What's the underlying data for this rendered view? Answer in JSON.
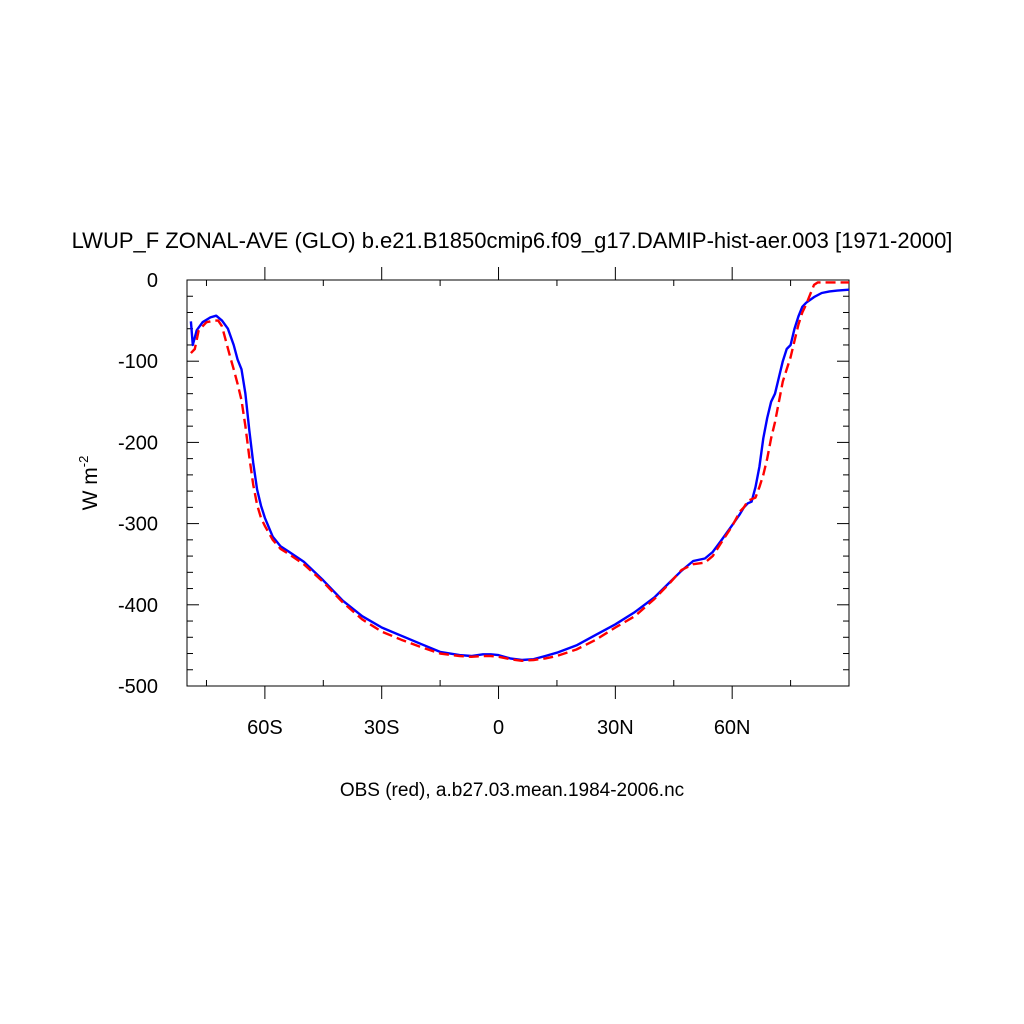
{
  "chart_data": {
    "type": "line",
    "title": "LWUP_F ZONAL-AVE (GLO) b.e21.B1850cmip6.f09_g17.DAMIP-hist-aer.003 [1971-2000]",
    "xlabel": "OBS (red), a.b27.03.mean.1984-2006.nc",
    "ylabel_base": "W m",
    "ylabel_exp": "-2",
    "xlim": [
      -80,
      90
    ],
    "ylim": [
      -500,
      0
    ],
    "x_ticks": [
      {
        "value": -60,
        "label": "60S"
      },
      {
        "value": -30,
        "label": "30S"
      },
      {
        "value": 0,
        "label": "0"
      },
      {
        "value": 30,
        "label": "30N"
      },
      {
        "value": 60,
        "label": "60N"
      }
    ],
    "y_ticks": [
      {
        "value": 0,
        "label": "0"
      },
      {
        "value": -100,
        "label": "-100"
      },
      {
        "value": -200,
        "label": "-200"
      },
      {
        "value": -300,
        "label": "-300"
      },
      {
        "value": -400,
        "label": "-400"
      },
      {
        "value": -500,
        "label": "-500"
      }
    ],
    "series": [
      {
        "color": "#0000ff",
        "dash": "solid",
        "points": [
          [
            -79,
            -51
          ],
          [
            -78.5,
            -80
          ],
          [
            -77.5,
            -62
          ],
          [
            -76,
            -52
          ],
          [
            -74,
            -46
          ],
          [
            -72.5,
            -44
          ],
          [
            -71,
            -50
          ],
          [
            -69.5,
            -60
          ],
          [
            -68,
            -80
          ],
          [
            -67,
            -98
          ],
          [
            -66,
            -110
          ],
          [
            -65,
            -140
          ],
          [
            -64,
            -185
          ],
          [
            -63,
            -225
          ],
          [
            -62,
            -258
          ],
          [
            -61,
            -278
          ],
          [
            -60,
            -293
          ],
          [
            -58,
            -316
          ],
          [
            -56,
            -328
          ],
          [
            -54,
            -334
          ],
          [
            -50,
            -347
          ],
          [
            -45,
            -370
          ],
          [
            -40,
            -395
          ],
          [
            -35,
            -414
          ],
          [
            -30,
            -428
          ],
          [
            -25,
            -438
          ],
          [
            -20,
            -448
          ],
          [
            -15,
            -458
          ],
          [
            -10,
            -462
          ],
          [
            -7,
            -463
          ],
          [
            -4,
            -461
          ],
          [
            -2,
            -461
          ],
          [
            0,
            -462
          ],
          [
            3,
            -466
          ],
          [
            6,
            -468
          ],
          [
            9,
            -467
          ],
          [
            12,
            -463
          ],
          [
            15,
            -459
          ],
          [
            20,
            -450
          ],
          [
            25,
            -437
          ],
          [
            30,
            -424
          ],
          [
            35,
            -409
          ],
          [
            40,
            -391
          ],
          [
            44,
            -372
          ],
          [
            47,
            -358
          ],
          [
            50,
            -346
          ],
          [
            53,
            -343
          ],
          [
            55,
            -335
          ],
          [
            57,
            -322
          ],
          [
            60,
            -302
          ],
          [
            62,
            -288
          ],
          [
            63,
            -280
          ],
          [
            64,
            -275
          ],
          [
            65,
            -273
          ],
          [
            66,
            -255
          ],
          [
            67,
            -230
          ],
          [
            68,
            -195
          ],
          [
            69,
            -170
          ],
          [
            70,
            -150
          ],
          [
            71,
            -140
          ],
          [
            72,
            -120
          ],
          [
            73,
            -100
          ],
          [
            74,
            -85
          ],
          [
            75,
            -80
          ],
          [
            76,
            -60
          ],
          [
            77,
            -45
          ],
          [
            78,
            -33
          ],
          [
            79,
            -28
          ],
          [
            81,
            -21
          ],
          [
            83,
            -16
          ],
          [
            85,
            -14
          ],
          [
            87,
            -13
          ],
          [
            90,
            -12
          ]
        ]
      },
      {
        "color": "#ff0000",
        "dash": "dashed",
        "points": [
          [
            -79,
            -90
          ],
          [
            -78,
            -85
          ],
          [
            -77,
            -62
          ],
          [
            -75,
            -52
          ],
          [
            -73,
            -50
          ],
          [
            -72,
            -50
          ],
          [
            -71,
            -57
          ],
          [
            -70,
            -75
          ],
          [
            -69,
            -93
          ],
          [
            -68,
            -110
          ],
          [
            -67,
            -128
          ],
          [
            -66,
            -148
          ],
          [
            -65,
            -180
          ],
          [
            -64,
            -218
          ],
          [
            -63,
            -252
          ],
          [
            -62,
            -277
          ],
          [
            -61,
            -293
          ],
          [
            -60,
            -303
          ],
          [
            -58,
            -320
          ],
          [
            -56,
            -331
          ],
          [
            -54,
            -337
          ],
          [
            -50,
            -350
          ],
          [
            -45,
            -372
          ],
          [
            -40,
            -397
          ],
          [
            -35,
            -418
          ],
          [
            -30,
            -433
          ],
          [
            -25,
            -443
          ],
          [
            -20,
            -452
          ],
          [
            -15,
            -460
          ],
          [
            -10,
            -463
          ],
          [
            -7,
            -464
          ],
          [
            -4,
            -463
          ],
          [
            -2,
            -463
          ],
          [
            0,
            -464
          ],
          [
            3,
            -467
          ],
          [
            6,
            -469
          ],
          [
            9,
            -468
          ],
          [
            12,
            -466
          ],
          [
            15,
            -463
          ],
          [
            20,
            -455
          ],
          [
            25,
            -443
          ],
          [
            30,
            -428
          ],
          [
            35,
            -414
          ],
          [
            40,
            -393
          ],
          [
            44,
            -373
          ],
          [
            47,
            -357
          ],
          [
            50,
            -350
          ],
          [
            53,
            -348
          ],
          [
            55,
            -340
          ],
          [
            57,
            -325
          ],
          [
            60,
            -303
          ],
          [
            62,
            -285
          ],
          [
            63,
            -280
          ],
          [
            64,
            -272
          ],
          [
            65,
            -270
          ],
          [
            66,
            -268
          ],
          [
            67,
            -255
          ],
          [
            68,
            -240
          ],
          [
            69,
            -220
          ],
          [
            70,
            -195
          ],
          [
            71,
            -175
          ],
          [
            72,
            -150
          ],
          [
            73,
            -125
          ],
          [
            74,
            -110
          ],
          [
            75,
            -95
          ],
          [
            76,
            -75
          ],
          [
            77,
            -55
          ],
          [
            78,
            -40
          ],
          [
            79,
            -30
          ],
          [
            80,
            -18
          ],
          [
            81,
            -6
          ],
          [
            82,
            -3
          ],
          [
            86,
            -3
          ],
          [
            90,
            -3
          ]
        ]
      }
    ]
  }
}
